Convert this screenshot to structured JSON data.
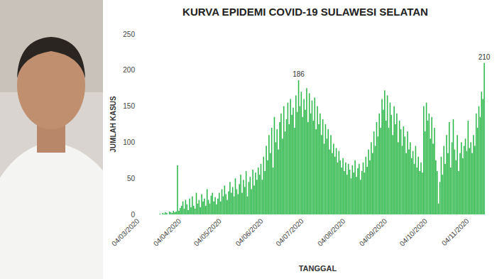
{
  "chart_data": {
    "type": "bar",
    "title": "KURVA EPIDEMI COVID-19 SULAWESI SELATAN",
    "x_label": "TANGGAL",
    "y_label": "JUMLAH KASUS",
    "color": "#2eb84b",
    "grid": false,
    "ylim": [
      0,
      250
    ],
    "yticks": [
      0,
      50,
      100,
      150,
      200,
      250
    ],
    "annotations": [
      {
        "text": "186",
        "index": 118
      },
      {
        "text": "210",
        "index": 256
      }
    ],
    "categories": [
      "04/03/2020",
      null,
      null,
      null,
      null,
      null,
      null,
      null,
      null,
      null,
      null,
      null,
      null,
      null,
      null,
      null,
      null,
      null,
      null,
      null,
      null,
      null,
      null,
      null,
      null,
      null,
      null,
      null,
      null,
      null,
      null,
      "04/04/2020",
      null,
      null,
      null,
      null,
      null,
      null,
      null,
      null,
      null,
      null,
      null,
      null,
      null,
      null,
      null,
      null,
      null,
      null,
      null,
      null,
      null,
      null,
      null,
      null,
      null,
      null,
      null,
      null,
      null,
      "04/05/2020",
      null,
      null,
      null,
      null,
      null,
      null,
      null,
      null,
      null,
      null,
      null,
      null,
      null,
      null,
      null,
      null,
      null,
      null,
      null,
      null,
      null,
      null,
      null,
      null,
      null,
      null,
      null,
      null,
      null,
      null,
      "04/06/2020",
      null,
      null,
      null,
      null,
      null,
      null,
      null,
      null,
      null,
      null,
      null,
      null,
      null,
      null,
      null,
      null,
      null,
      null,
      null,
      null,
      null,
      null,
      null,
      null,
      null,
      null,
      null,
      null,
      null,
      "04/07/2020",
      null,
      null,
      null,
      null,
      null,
      null,
      null,
      null,
      null,
      null,
      null,
      null,
      null,
      null,
      null,
      null,
      null,
      null,
      null,
      null,
      null,
      null,
      null,
      null,
      null,
      null,
      null,
      null,
      null,
      null,
      "04/08/2020",
      null,
      null,
      null,
      null,
      null,
      null,
      null,
      null,
      null,
      null,
      null,
      null,
      null,
      null,
      null,
      null,
      null,
      null,
      null,
      null,
      null,
      null,
      null,
      null,
      null,
      null,
      null,
      null,
      null,
      null,
      "04/09/2020",
      null,
      null,
      null,
      null,
      null,
      null,
      null,
      null,
      null,
      null,
      null,
      null,
      null,
      null,
      null,
      null,
      null,
      null,
      null,
      null,
      null,
      null,
      null,
      null,
      null,
      null,
      null,
      null,
      null,
      "04/10/2020",
      null,
      null,
      null,
      null,
      null,
      null,
      null,
      null,
      null,
      null,
      null,
      null,
      null,
      null,
      null,
      null,
      null,
      null,
      null,
      null,
      null,
      null,
      null,
      null,
      null,
      null,
      null,
      null,
      null,
      null,
      "04/11/2020",
      null,
      null,
      null,
      null,
      null,
      null,
      null,
      null,
      null,
      null,
      null
    ],
    "values": [
      0,
      0,
      0,
      0,
      0,
      0,
      0,
      0,
      0,
      0,
      0,
      0,
      0,
      0,
      0,
      1,
      0,
      2,
      1,
      3,
      2,
      0,
      4,
      3,
      2,
      5,
      3,
      4,
      68,
      5,
      9,
      12,
      18,
      8,
      20,
      14,
      6,
      22,
      10,
      25,
      12,
      8,
      30,
      15,
      20,
      10,
      28,
      18,
      22,
      12,
      35,
      20,
      15,
      26,
      30,
      18,
      24,
      14,
      22,
      30,
      18,
      35,
      25,
      40,
      28,
      20,
      32,
      45,
      30,
      38,
      25,
      50,
      35,
      28,
      42,
      55,
      30,
      48,
      38,
      60,
      25,
      45,
      52,
      35,
      62,
      40,
      58,
      48,
      65,
      55,
      70,
      48,
      80,
      60,
      95,
      75,
      110,
      85,
      120,
      65,
      135,
      100,
      118,
      90,
      128,
      140,
      105,
      150,
      115,
      132,
      155,
      125,
      160,
      138,
      148,
      120,
      165,
      142,
      186,
      150,
      170,
      135,
      160,
      145,
      175,
      128,
      168,
      140,
      158,
      130,
      162,
      118,
      150,
      125,
      140,
      110,
      132,
      98,
      125,
      105,
      118,
      90,
      110,
      85,
      98,
      80,
      92,
      72,
      88,
      75,
      65,
      78,
      60,
      72,
      55,
      70,
      62,
      50,
      68,
      58,
      75,
      52,
      64,
      70,
      48,
      60,
      72,
      58,
      80,
      66,
      90,
      75,
      100,
      85,
      115,
      95,
      128,
      108,
      140,
      120,
      160,
      145,
      172,
      130,
      165,
      120,
      155,
      138,
      110,
      150,
      125,
      140,
      100,
      130,
      118,
      95,
      122,
      108,
      85,
      115,
      90,
      100,
      78,
      88,
      70,
      95,
      65,
      80,
      60,
      72,
      58,
      150,
      115,
      155,
      130,
      140,
      105,
      135,
      98,
      120,
      75,
      60,
      15,
      45,
      80,
      55,
      95,
      70,
      110,
      85,
      128,
      65,
      100,
      132,
      90,
      75,
      110,
      60,
      85,
      100,
      78,
      95,
      105,
      88,
      130,
      92,
      100,
      85,
      110,
      95,
      140,
      120,
      150,
      135,
      170,
      160,
      210
    ]
  }
}
